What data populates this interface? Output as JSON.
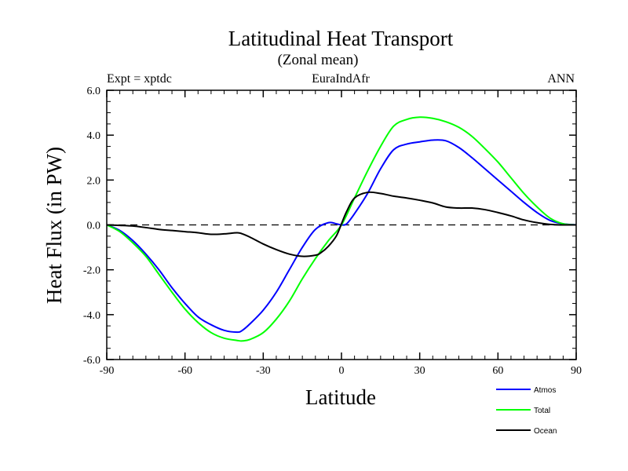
{
  "chart_data": {
    "type": "line",
    "title": "Latitudinal Heat Transport",
    "subtitle": "(Zonal mean)",
    "left_label": "Expt = xptdc",
    "center_label": "EuraIndAfr",
    "right_label": "ANN",
    "xlabel": "Latitude",
    "ylabel": "Heat Flux (in PW)",
    "xlim": [
      -90,
      90
    ],
    "ylim": [
      -6,
      6
    ],
    "xticks": [
      -90,
      -60,
      -30,
      0,
      30,
      60,
      90
    ],
    "yticks": [
      -6,
      -4,
      -2,
      0,
      2,
      4,
      6
    ],
    "xtick_labels": [
      "-90",
      "-60",
      "-30",
      "0",
      "30",
      "60",
      "90"
    ],
    "ytick_labels": [
      "-6.0",
      "-4.0",
      "-2.0",
      "0.0",
      "2.0",
      "4.0",
      "6.0"
    ],
    "zero_line": "dashed",
    "grid": false,
    "legend_position": "bottom-right",
    "series": [
      {
        "name": "Atmos",
        "color": "#0000ff",
        "x": [
          -90,
          -85,
          -80,
          -75,
          -70,
          -65,
          -60,
          -55,
          -50,
          -45,
          -40,
          -38,
          -35,
          -30,
          -25,
          -20,
          -15,
          -10,
          -5,
          -2,
          0,
          2,
          5,
          10,
          15,
          20,
          25,
          30,
          35,
          40,
          45,
          50,
          55,
          60,
          65,
          70,
          75,
          80,
          85,
          90
        ],
        "y": [
          0.0,
          -0.25,
          -0.7,
          -1.3,
          -2.0,
          -2.8,
          -3.5,
          -4.1,
          -4.45,
          -4.7,
          -4.78,
          -4.7,
          -4.4,
          -3.8,
          -3.0,
          -2.0,
          -1.0,
          -0.2,
          0.1,
          0.05,
          0.0,
          0.05,
          0.5,
          1.4,
          2.5,
          3.35,
          3.6,
          3.7,
          3.78,
          3.75,
          3.45,
          3.0,
          2.5,
          2.0,
          1.5,
          1.0,
          0.55,
          0.2,
          0.05,
          0.0
        ]
      },
      {
        "name": "Total",
        "color": "#00ff00",
        "x": [
          -90,
          -85,
          -80,
          -75,
          -70,
          -65,
          -60,
          -55,
          -50,
          -45,
          -40,
          -38,
          -35,
          -30,
          -25,
          -20,
          -15,
          -10,
          -5,
          0,
          5,
          10,
          15,
          20,
          25,
          30,
          35,
          40,
          45,
          50,
          55,
          60,
          65,
          70,
          75,
          80,
          85,
          90
        ],
        "y": [
          0.0,
          -0.3,
          -0.8,
          -1.4,
          -2.2,
          -3.0,
          -3.75,
          -4.35,
          -4.8,
          -5.05,
          -5.15,
          -5.17,
          -5.1,
          -4.8,
          -4.2,
          -3.4,
          -2.4,
          -1.5,
          -0.7,
          0.0,
          1.2,
          2.4,
          3.5,
          4.4,
          4.7,
          4.8,
          4.75,
          4.6,
          4.35,
          3.95,
          3.4,
          2.8,
          2.1,
          1.4,
          0.8,
          0.3,
          0.05,
          0.0
        ]
      },
      {
        "name": "Ocean",
        "color": "#000000",
        "x": [
          -90,
          -85,
          -80,
          -75,
          -70,
          -65,
          -60,
          -55,
          -50,
          -45,
          -40,
          -38,
          -35,
          -30,
          -25,
          -20,
          -15,
          -10,
          -8,
          -5,
          -2,
          0,
          2,
          5,
          10,
          15,
          20,
          25,
          30,
          35,
          40,
          45,
          50,
          55,
          60,
          65,
          70,
          75,
          80,
          85,
          90
        ],
        "y": [
          0.0,
          -0.02,
          -0.05,
          -0.12,
          -0.2,
          -0.25,
          -0.3,
          -0.35,
          -0.42,
          -0.4,
          -0.35,
          -0.4,
          -0.55,
          -0.85,
          -1.1,
          -1.3,
          -1.4,
          -1.35,
          -1.25,
          -0.95,
          -0.5,
          0.05,
          0.6,
          1.2,
          1.45,
          1.4,
          1.28,
          1.2,
          1.1,
          0.98,
          0.8,
          0.75,
          0.75,
          0.68,
          0.55,
          0.4,
          0.22,
          0.1,
          0.02,
          0.0,
          0.0
        ]
      }
    ]
  },
  "legend": {
    "items": [
      {
        "label": "Atmos",
        "color": "#0000ff"
      },
      {
        "label": "Total",
        "color": "#00ff00"
      },
      {
        "label": "Ocean",
        "color": "#000000"
      }
    ]
  }
}
